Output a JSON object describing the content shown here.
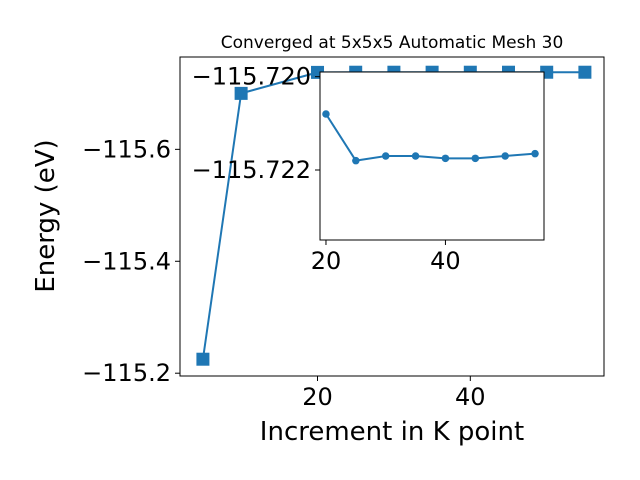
{
  "chart_data": [
    {
      "type": "line",
      "title": "Converged at 5x5x5 Automatic Mesh 30",
      "xlabel": "Increment in K point",
      "ylabel": "Energy (eV)",
      "xlim": [
        2,
        57.5
      ],
      "ylim": [
        -115.765,
        -115.195
      ],
      "y_inverted": true,
      "x_ticks": [
        20,
        40
      ],
      "y_ticks": [
        -115.2,
        -115.4,
        -115.6
      ],
      "y_tick_labels": [
        "−115.2",
        "−115.4",
        "−115.6"
      ],
      "grid": false,
      "marker": "square",
      "color": "#1f77b4",
      "x": [
        5,
        10,
        20,
        25,
        30,
        35,
        40,
        45,
        50,
        55
      ],
      "values": [
        -115.225,
        -115.7,
        -115.7375,
        -115.7378,
        -115.7378,
        -115.7378,
        -115.7378,
        -115.7378,
        -115.7378,
        -115.7378
      ]
    },
    {
      "type": "line",
      "title": "",
      "xlabel": "",
      "ylabel": "",
      "xlim": [
        19,
        56.5
      ],
      "ylim": [
        -115.7199,
        -115.7235
      ],
      "y_inverted": true,
      "x_ticks": [
        20,
        40
      ],
      "y_ticks": [
        -115.722,
        -115.72
      ],
      "y_tick_labels": [
        "−115.722",
        "−115.720"
      ],
      "grid": false,
      "marker": "circle",
      "color": "#1f77b4",
      "x": [
        20,
        25,
        30,
        35,
        40,
        45,
        50,
        55
      ],
      "values": [
        -115.7208,
        -115.7218,
        -115.7217,
        -115.7217,
        -115.72175,
        -115.72175,
        -115.7217,
        -115.72165
      ]
    }
  ]
}
